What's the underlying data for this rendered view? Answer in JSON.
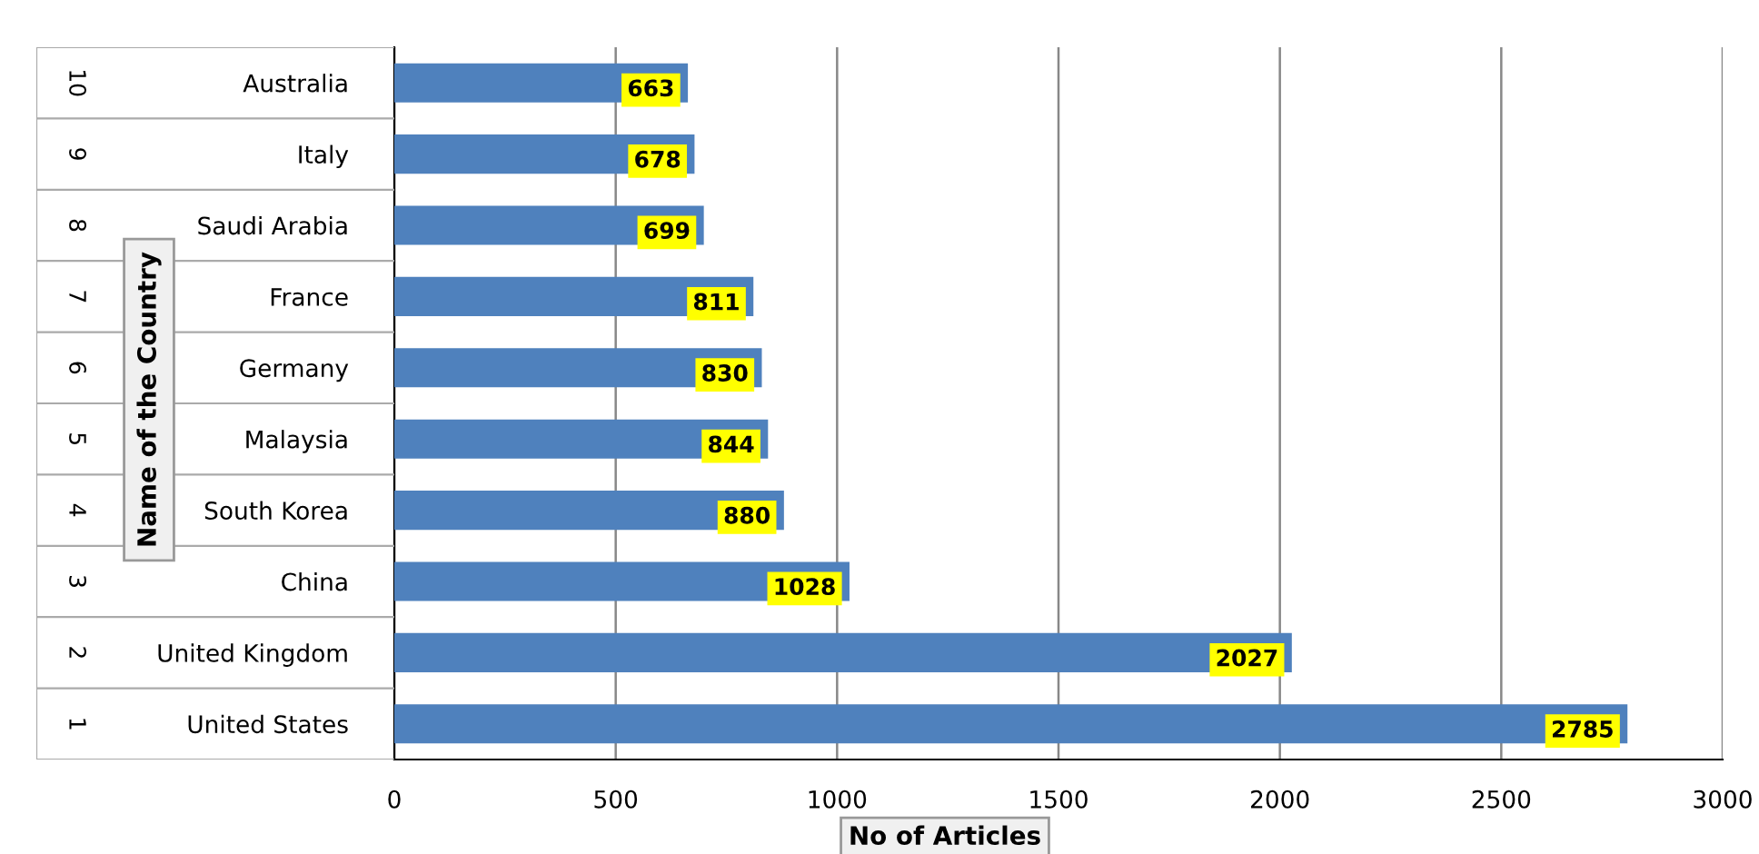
{
  "chart_data": {
    "type": "bar",
    "orientation": "horizontal",
    "categories": [
      "Australia",
      "Italy",
      "Saudi Arabia",
      "France",
      "Germany",
      "Malaysia",
      "South Korea",
      "China",
      "United Kingdom",
      "United States"
    ],
    "values": [
      663,
      678,
      699,
      811,
      830,
      844,
      880,
      1028,
      2027,
      2785
    ],
    "color": "#4f81bd",
    "xlim": [
      0,
      3000
    ],
    "xticks": [
      0,
      500,
      1000,
      1500,
      2000,
      2500,
      3000
    ],
    "xlabel": "No of Articles",
    "ylabel": "Name of the Country",
    "annotations": [
      "10",
      "9",
      "8",
      "7",
      "6",
      "5",
      "4",
      "3",
      "2",
      "1"
    ],
    "grid": "x",
    "data_labels": true
  }
}
